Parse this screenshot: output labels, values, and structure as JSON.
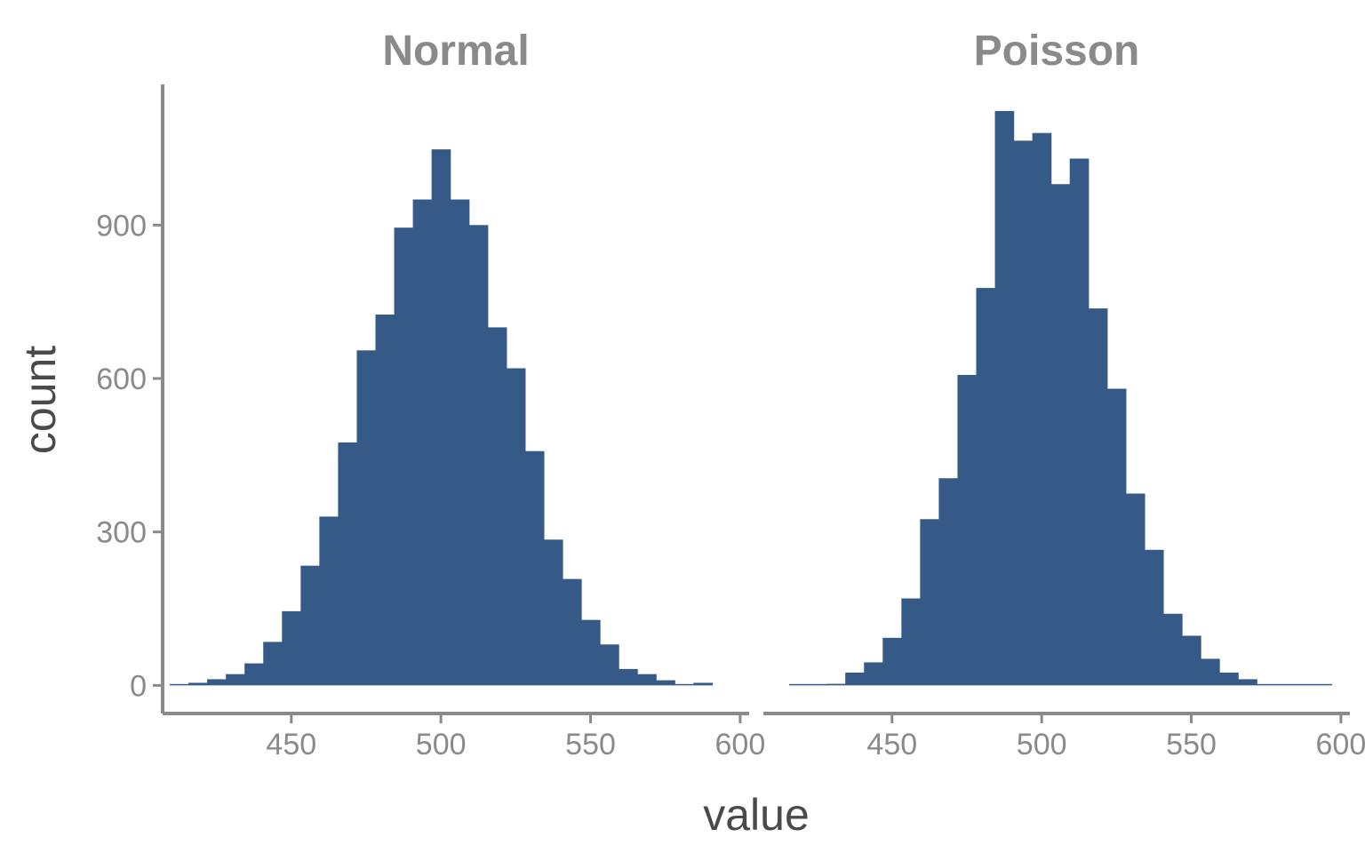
{
  "chart_data": {
    "type": "bar",
    "subtype": "faceted-histogram",
    "xlabel": "value",
    "ylabel": "count",
    "xlim": [
      407,
      603
    ],
    "ylim": [
      -55,
      1175
    ],
    "x_ticks": [
      450,
      500,
      550,
      600
    ],
    "y_ticks": [
      0,
      300,
      600,
      900
    ],
    "bar_color": "#365a87",
    "axis_color": "#8a8a8a",
    "grid": false,
    "legend": "none",
    "bin_width": 6.25,
    "facets": [
      {
        "title": "Normal",
        "bins": [
          {
            "x": 412.5,
            "count": 1
          },
          {
            "x": 418.75,
            "count": 5
          },
          {
            "x": 425.0,
            "count": 12
          },
          {
            "x": 431.25,
            "count": 22
          },
          {
            "x": 437.5,
            "count": 43
          },
          {
            "x": 443.75,
            "count": 85
          },
          {
            "x": 450.0,
            "count": 145
          },
          {
            "x": 456.25,
            "count": 234
          },
          {
            "x": 462.5,
            "count": 330
          },
          {
            "x": 468.75,
            "count": 475
          },
          {
            "x": 475.0,
            "count": 655
          },
          {
            "x": 481.25,
            "count": 725
          },
          {
            "x": 487.5,
            "count": 895
          },
          {
            "x": 493.75,
            "count": 950
          },
          {
            "x": 500.0,
            "count": 1048
          },
          {
            "x": 506.25,
            "count": 950
          },
          {
            "x": 512.5,
            "count": 900
          },
          {
            "x": 518.75,
            "count": 700
          },
          {
            "x": 525.0,
            "count": 620
          },
          {
            "x": 531.25,
            "count": 458
          },
          {
            "x": 537.5,
            "count": 285
          },
          {
            "x": 543.75,
            "count": 208
          },
          {
            "x": 550.0,
            "count": 128
          },
          {
            "x": 556.25,
            "count": 80
          },
          {
            "x": 562.5,
            "count": 32
          },
          {
            "x": 568.75,
            "count": 22
          },
          {
            "x": 575.0,
            "count": 10
          },
          {
            "x": 581.25,
            "count": 2
          },
          {
            "x": 587.5,
            "count": 5
          }
        ]
      },
      {
        "title": "Poisson",
        "bins": [
          {
            "x": 418.75,
            "count": 1
          },
          {
            "x": 425.0,
            "count": 1
          },
          {
            "x": 431.25,
            "count": 3
          },
          {
            "x": 437.5,
            "count": 25
          },
          {
            "x": 443.75,
            "count": 45
          },
          {
            "x": 450.0,
            "count": 93
          },
          {
            "x": 456.25,
            "count": 170
          },
          {
            "x": 462.5,
            "count": 325
          },
          {
            "x": 468.75,
            "count": 405
          },
          {
            "x": 475.0,
            "count": 607
          },
          {
            "x": 481.25,
            "count": 777
          },
          {
            "x": 487.5,
            "count": 1123
          },
          {
            "x": 493.75,
            "count": 1065
          },
          {
            "x": 500.0,
            "count": 1080
          },
          {
            "x": 506.25,
            "count": 980
          },
          {
            "x": 512.5,
            "count": 1030
          },
          {
            "x": 518.75,
            "count": 737
          },
          {
            "x": 525.0,
            "count": 580
          },
          {
            "x": 531.25,
            "count": 375
          },
          {
            "x": 537.5,
            "count": 265
          },
          {
            "x": 543.75,
            "count": 140
          },
          {
            "x": 550.0,
            "count": 97
          },
          {
            "x": 556.25,
            "count": 52
          },
          {
            "x": 562.5,
            "count": 25
          },
          {
            "x": 568.75,
            "count": 12
          },
          {
            "x": 575.0,
            "count": 2
          },
          {
            "x": 581.25,
            "count": 1
          },
          {
            "x": 587.5,
            "count": 1
          },
          {
            "x": 593.75,
            "count": 1
          }
        ]
      }
    ]
  }
}
